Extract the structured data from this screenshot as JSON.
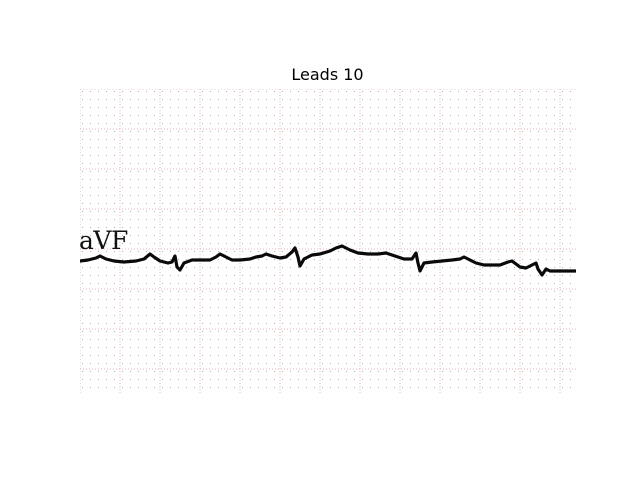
{
  "figure": {
    "title": "Leads 10"
  },
  "ecg": {
    "lead_label": "aVF",
    "grid_color": "#e8b4b4",
    "dot_color": "#b0b0b0",
    "trace_color": "#0a0a0a"
  }
}
